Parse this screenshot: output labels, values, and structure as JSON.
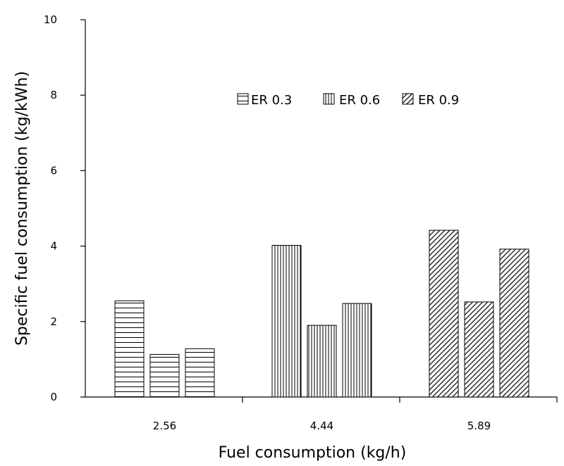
{
  "chart_data": {
    "type": "bar",
    "title": "",
    "xlabel": "Fuel consumption (kg/h)",
    "ylabel": "Specific fuel consumption (kg/kWh)",
    "ylim": [
      0,
      10
    ],
    "yticks": [
      "0",
      "2",
      "4",
      "6",
      "8",
      "10"
    ],
    "grid": false,
    "legend_position": "top-center",
    "categories": [
      "2.56",
      "4.44",
      "5.89"
    ],
    "group_patterns": [
      "horizontal-lines",
      "vertical-lines",
      "diagonal-lines"
    ],
    "legend": [
      "ER 0.3",
      "ER 0.6",
      "ER 0.9"
    ],
    "values": [
      [
        2.55,
        1.13,
        1.28
      ],
      [
        4.02,
        1.9,
        2.48
      ],
      [
        4.42,
        2.52,
        3.92
      ]
    ]
  }
}
